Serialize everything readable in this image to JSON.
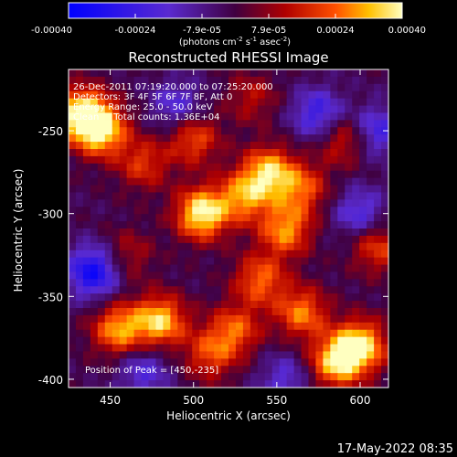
{
  "chart_data": {
    "type": "heatmap",
    "title": "Reconstructed RHESSI Image",
    "xlabel": "Heliocentric X (arcsec)",
    "ylabel": "Heliocentric Y (arcsec)",
    "xlim": [
      425,
      617
    ],
    "ylim": [
      -405,
      -213
    ],
    "x_ticks": [
      450,
      500,
      550,
      600
    ],
    "y_ticks": [
      -250,
      -300,
      -350,
      -400
    ],
    "colorbar": {
      "ticks": [
        "-0.00040",
        "-0.00024",
        "-7.9e-05",
        "7.9e-05",
        "0.00024",
        "0.00040"
      ],
      "range": [
        -0.0004,
        0.0004
      ],
      "label_base": "(photons cm",
      "label_exp1": "-2",
      "label_mid": " s",
      "label_exp2": "-1",
      "label_end": " asec",
      "label_exp3": "-2",
      "label_close": ")"
    },
    "annotations": [
      "26-Dec-2011 07:19:20.000 to 07:25:20.000",
      "Detectors: 3F 4F 5F 6F 7F 8F, Att 0",
      "Energy Range: 25.0 - 50.0 keV",
      "Clean     Total counts: 1.36E+04"
    ],
    "peak_label": "Position of Peak = [450,-235]",
    "peak": [
      450,
      -235
    ],
    "blobs": [
      {
        "x": 505,
        "y": -300,
        "amp": 1.05
      },
      {
        "x": 445,
        "y": -250,
        "amp": 0.9
      },
      {
        "x": 433,
        "y": -240,
        "amp": 1.05
      },
      {
        "x": 545,
        "y": -275,
        "amp": 0.85
      },
      {
        "x": 530,
        "y": -290,
        "amp": 0.7
      },
      {
        "x": 555,
        "y": -310,
        "amp": 0.75
      },
      {
        "x": 565,
        "y": -285,
        "amp": 0.6
      },
      {
        "x": 480,
        "y": -365,
        "amp": 0.9
      },
      {
        "x": 455,
        "y": -370,
        "amp": 0.8
      },
      {
        "x": 600,
        "y": -380,
        "amp": 1.0
      },
      {
        "x": 585,
        "y": -390,
        "amp": 0.85
      },
      {
        "x": 540,
        "y": -340,
        "amp": 0.65
      },
      {
        "x": 525,
        "y": -370,
        "amp": 0.6
      },
      {
        "x": 565,
        "y": -360,
        "amp": 0.7
      },
      {
        "x": 500,
        "y": -255,
        "amp": 0.6
      },
      {
        "x": 470,
        "y": -270,
        "amp": 0.5
      },
      {
        "x": 510,
        "y": -385,
        "amp": 0.55
      },
      {
        "x": 610,
        "y": -320,
        "amp": 0.55
      },
      {
        "x": 590,
        "y": -255,
        "amp": 0.5
      },
      {
        "x": 460,
        "y": -325,
        "amp": 0.35
      },
      {
        "x": 535,
        "y": -230,
        "amp": 0.35
      }
    ],
    "cold_spots": [
      {
        "x": 440,
        "y": -335,
        "amp": -0.85
      },
      {
        "x": 575,
        "y": -240,
        "amp": -0.6
      },
      {
        "x": 600,
        "y": -300,
        "amp": -0.5
      },
      {
        "x": 490,
        "y": -235,
        "amp": -0.45
      },
      {
        "x": 470,
        "y": -395,
        "amp": -0.45
      },
      {
        "x": 555,
        "y": -400,
        "amp": -0.4
      },
      {
        "x": 610,
        "y": -250,
        "amp": -0.55
      }
    ]
  },
  "footer_timestamp": "17-May-2022 08:35"
}
